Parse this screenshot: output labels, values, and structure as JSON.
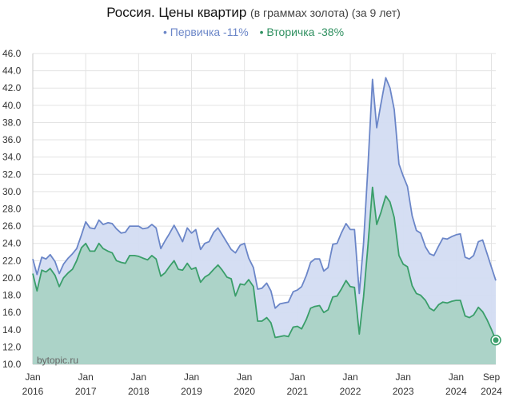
{
  "title": {
    "main": "Россия. Цены квартир",
    "sub": "(в граммах золота) (за 9 лет)"
  },
  "legend": {
    "items": [
      {
        "label": "Первичка -11%",
        "color": "#6b86c8"
      },
      {
        "label": "Вторичка -38%",
        "color": "#3a9e6a"
      }
    ]
  },
  "watermark": "bytopic.ru",
  "colors": {
    "primary_line": "#6b86c8",
    "primary_fill": "#d3dcf2",
    "secondary_line": "#3a9e6a",
    "secondary_fill": "#a7d2c3",
    "grid": "#e3e3e3"
  },
  "chart_data": {
    "type": "area",
    "ylim": [
      10,
      46
    ],
    "y_ticks": [
      "10.0",
      "12.0",
      "14.0",
      "16.0",
      "18.0",
      "20.0",
      "22.0",
      "24.0",
      "26.0",
      "28.0",
      "30.0",
      "32.0",
      "34.0",
      "36.0",
      "38.0",
      "40.0",
      "42.0",
      "44.0",
      "46.0"
    ],
    "x_ticks": [
      {
        "t": 2016.0,
        "month": "Jan",
        "year": "2016"
      },
      {
        "t": 2017.0,
        "month": "Jan",
        "year": "2017"
      },
      {
        "t": 2018.0,
        "month": "Jan",
        "year": "2018"
      },
      {
        "t": 2019.0,
        "month": "Jan",
        "year": "2019"
      },
      {
        "t": 2020.0,
        "month": "Jan",
        "year": "2020"
      },
      {
        "t": 2021.0,
        "month": "Jan",
        "year": "2021"
      },
      {
        "t": 2022.0,
        "month": "Jan",
        "year": "2022"
      },
      {
        "t": 2023.0,
        "month": "Jan",
        "year": "2023"
      },
      {
        "t": 2024.0,
        "month": "Jan",
        "year": "2024"
      },
      {
        "t": 2024.667,
        "month": "Sep",
        "year": "2024"
      }
    ],
    "grid": true,
    "legend_position": "top",
    "series": [
      {
        "name": "Первичка -11%",
        "points": [
          [
            2016.0,
            22.2
          ],
          [
            2016.08,
            20.4
          ],
          [
            2016.17,
            22.4
          ],
          [
            2016.25,
            22.2
          ],
          [
            2016.33,
            22.7
          ],
          [
            2016.42,
            21.9
          ],
          [
            2016.5,
            20.5
          ],
          [
            2016.58,
            21.6
          ],
          [
            2016.67,
            22.3
          ],
          [
            2016.75,
            22.8
          ],
          [
            2016.83,
            23.4
          ],
          [
            2016.92,
            25.0
          ],
          [
            2017.0,
            26.5
          ],
          [
            2017.08,
            25.8
          ],
          [
            2017.17,
            25.7
          ],
          [
            2017.25,
            26.7
          ],
          [
            2017.33,
            26.2
          ],
          [
            2017.42,
            26.4
          ],
          [
            2017.5,
            26.3
          ],
          [
            2017.58,
            25.7
          ],
          [
            2017.67,
            25.2
          ],
          [
            2017.75,
            25.3
          ],
          [
            2017.83,
            26.0
          ],
          [
            2017.92,
            26.0
          ],
          [
            2018.0,
            26.0
          ],
          [
            2018.08,
            25.7
          ],
          [
            2018.17,
            25.8
          ],
          [
            2018.25,
            26.2
          ],
          [
            2018.33,
            25.8
          ],
          [
            2018.42,
            23.4
          ],
          [
            2018.5,
            24.3
          ],
          [
            2018.58,
            25.1
          ],
          [
            2018.67,
            26.1
          ],
          [
            2018.75,
            25.2
          ],
          [
            2018.83,
            24.2
          ],
          [
            2018.92,
            25.8
          ],
          [
            2019.0,
            25.2
          ],
          [
            2019.08,
            25.6
          ],
          [
            2019.17,
            23.3
          ],
          [
            2019.25,
            24.0
          ],
          [
            2019.33,
            24.2
          ],
          [
            2019.42,
            25.3
          ],
          [
            2019.5,
            25.8
          ],
          [
            2019.58,
            25.0
          ],
          [
            2019.67,
            24.1
          ],
          [
            2019.75,
            23.3
          ],
          [
            2019.83,
            22.9
          ],
          [
            2019.92,
            23.8
          ],
          [
            2020.0,
            24.0
          ],
          [
            2020.08,
            22.3
          ],
          [
            2020.17,
            21.2
          ],
          [
            2020.25,
            18.7
          ],
          [
            2020.33,
            18.8
          ],
          [
            2020.42,
            19.4
          ],
          [
            2020.5,
            18.5
          ],
          [
            2020.58,
            16.5
          ],
          [
            2020.67,
            17.0
          ],
          [
            2020.75,
            17.1
          ],
          [
            2020.83,
            17.2
          ],
          [
            2020.92,
            18.4
          ],
          [
            2021.0,
            18.6
          ],
          [
            2021.08,
            19.0
          ],
          [
            2021.17,
            20.3
          ],
          [
            2021.25,
            21.8
          ],
          [
            2021.33,
            22.2
          ],
          [
            2021.42,
            22.2
          ],
          [
            2021.5,
            20.8
          ],
          [
            2021.58,
            21.2
          ],
          [
            2021.67,
            23.9
          ],
          [
            2021.75,
            24.0
          ],
          [
            2021.83,
            25.2
          ],
          [
            2021.92,
            26.3
          ],
          [
            2022.0,
            25.6
          ],
          [
            2022.08,
            25.6
          ],
          [
            2022.17,
            18.2
          ],
          [
            2022.25,
            24.0
          ],
          [
            2022.33,
            32.5
          ],
          [
            2022.42,
            43.0
          ],
          [
            2022.5,
            37.4
          ],
          [
            2022.58,
            40.2
          ],
          [
            2022.67,
            43.2
          ],
          [
            2022.75,
            42.0
          ],
          [
            2022.83,
            39.5
          ],
          [
            2022.92,
            33.2
          ],
          [
            2023.0,
            31.8
          ],
          [
            2023.08,
            30.6
          ],
          [
            2023.17,
            27.2
          ],
          [
            2023.25,
            25.5
          ],
          [
            2023.33,
            25.2
          ],
          [
            2023.42,
            23.6
          ],
          [
            2023.5,
            22.8
          ],
          [
            2023.58,
            22.6
          ],
          [
            2023.67,
            23.7
          ],
          [
            2023.75,
            24.6
          ],
          [
            2023.83,
            24.5
          ],
          [
            2023.92,
            24.8
          ],
          [
            2024.0,
            25.0
          ],
          [
            2024.08,
            25.1
          ],
          [
            2024.17,
            22.4
          ],
          [
            2024.25,
            22.2
          ],
          [
            2024.33,
            22.6
          ],
          [
            2024.42,
            24.2
          ],
          [
            2024.5,
            24.4
          ],
          [
            2024.58,
            22.9
          ],
          [
            2024.67,
            21.2
          ],
          [
            2024.75,
            19.7
          ]
        ]
      },
      {
        "name": "Вторичка -38%",
        "points": [
          [
            2016.0,
            20.5
          ],
          [
            2016.08,
            18.5
          ],
          [
            2016.17,
            20.9
          ],
          [
            2016.25,
            20.7
          ],
          [
            2016.33,
            21.1
          ],
          [
            2016.42,
            20.3
          ],
          [
            2016.5,
            19.0
          ],
          [
            2016.58,
            20.0
          ],
          [
            2016.67,
            20.6
          ],
          [
            2016.75,
            21.0
          ],
          [
            2016.83,
            22.0
          ],
          [
            2016.92,
            23.5
          ],
          [
            2017.0,
            24.0
          ],
          [
            2017.08,
            23.1
          ],
          [
            2017.17,
            23.1
          ],
          [
            2017.25,
            24.0
          ],
          [
            2017.33,
            23.4
          ],
          [
            2017.42,
            23.1
          ],
          [
            2017.5,
            22.9
          ],
          [
            2017.58,
            22.0
          ],
          [
            2017.67,
            21.8
          ],
          [
            2017.75,
            21.7
          ],
          [
            2017.83,
            22.6
          ],
          [
            2017.92,
            22.6
          ],
          [
            2018.0,
            22.5
          ],
          [
            2018.08,
            22.3
          ],
          [
            2018.17,
            22.1
          ],
          [
            2018.25,
            22.6
          ],
          [
            2018.33,
            22.2
          ],
          [
            2018.42,
            20.2
          ],
          [
            2018.5,
            20.6
          ],
          [
            2018.58,
            21.3
          ],
          [
            2018.67,
            22.0
          ],
          [
            2018.75,
            21.0
          ],
          [
            2018.83,
            20.9
          ],
          [
            2018.92,
            21.7
          ],
          [
            2019.0,
            21.0
          ],
          [
            2019.08,
            21.2
          ],
          [
            2019.17,
            19.5
          ],
          [
            2019.25,
            20.1
          ],
          [
            2019.33,
            20.4
          ],
          [
            2019.42,
            21.0
          ],
          [
            2019.5,
            21.5
          ],
          [
            2019.58,
            20.9
          ],
          [
            2019.67,
            20.1
          ],
          [
            2019.75,
            19.9
          ],
          [
            2019.83,
            17.9
          ],
          [
            2019.92,
            19.3
          ],
          [
            2020.0,
            19.2
          ],
          [
            2020.08,
            19.8
          ],
          [
            2020.17,
            19.0
          ],
          [
            2020.25,
            15.0
          ],
          [
            2020.33,
            15.0
          ],
          [
            2020.42,
            15.4
          ],
          [
            2020.5,
            14.8
          ],
          [
            2020.58,
            13.1
          ],
          [
            2020.67,
            13.2
          ],
          [
            2020.75,
            13.3
          ],
          [
            2020.83,
            13.2
          ],
          [
            2020.92,
            14.3
          ],
          [
            2021.0,
            14.4
          ],
          [
            2021.08,
            14.1
          ],
          [
            2021.17,
            15.2
          ],
          [
            2021.25,
            16.5
          ],
          [
            2021.33,
            16.7
          ],
          [
            2021.42,
            16.8
          ],
          [
            2021.5,
            16.0
          ],
          [
            2021.58,
            16.3
          ],
          [
            2021.67,
            17.8
          ],
          [
            2021.75,
            17.9
          ],
          [
            2021.83,
            18.7
          ],
          [
            2021.92,
            19.7
          ],
          [
            2022.0,
            19.0
          ],
          [
            2022.08,
            18.9
          ],
          [
            2022.17,
            13.5
          ],
          [
            2022.25,
            17.8
          ],
          [
            2022.33,
            23.5
          ],
          [
            2022.42,
            30.5
          ],
          [
            2022.5,
            26.2
          ],
          [
            2022.58,
            27.6
          ],
          [
            2022.67,
            29.5
          ],
          [
            2022.75,
            28.8
          ],
          [
            2022.83,
            27.0
          ],
          [
            2022.92,
            22.6
          ],
          [
            2023.0,
            21.6
          ],
          [
            2023.08,
            21.3
          ],
          [
            2023.17,
            19.1
          ],
          [
            2023.25,
            18.2
          ],
          [
            2023.33,
            18.0
          ],
          [
            2023.42,
            17.4
          ],
          [
            2023.5,
            16.5
          ],
          [
            2023.58,
            16.2
          ],
          [
            2023.67,
            16.9
          ],
          [
            2023.75,
            17.2
          ],
          [
            2023.83,
            17.1
          ],
          [
            2023.92,
            17.3
          ],
          [
            2024.0,
            17.4
          ],
          [
            2024.08,
            17.4
          ],
          [
            2024.17,
            15.6
          ],
          [
            2024.25,
            15.4
          ],
          [
            2024.33,
            15.7
          ],
          [
            2024.42,
            16.6
          ],
          [
            2024.5,
            16.1
          ],
          [
            2024.58,
            15.2
          ],
          [
            2024.67,
            14.0
          ],
          [
            2024.75,
            12.8
          ]
        ]
      }
    ]
  }
}
